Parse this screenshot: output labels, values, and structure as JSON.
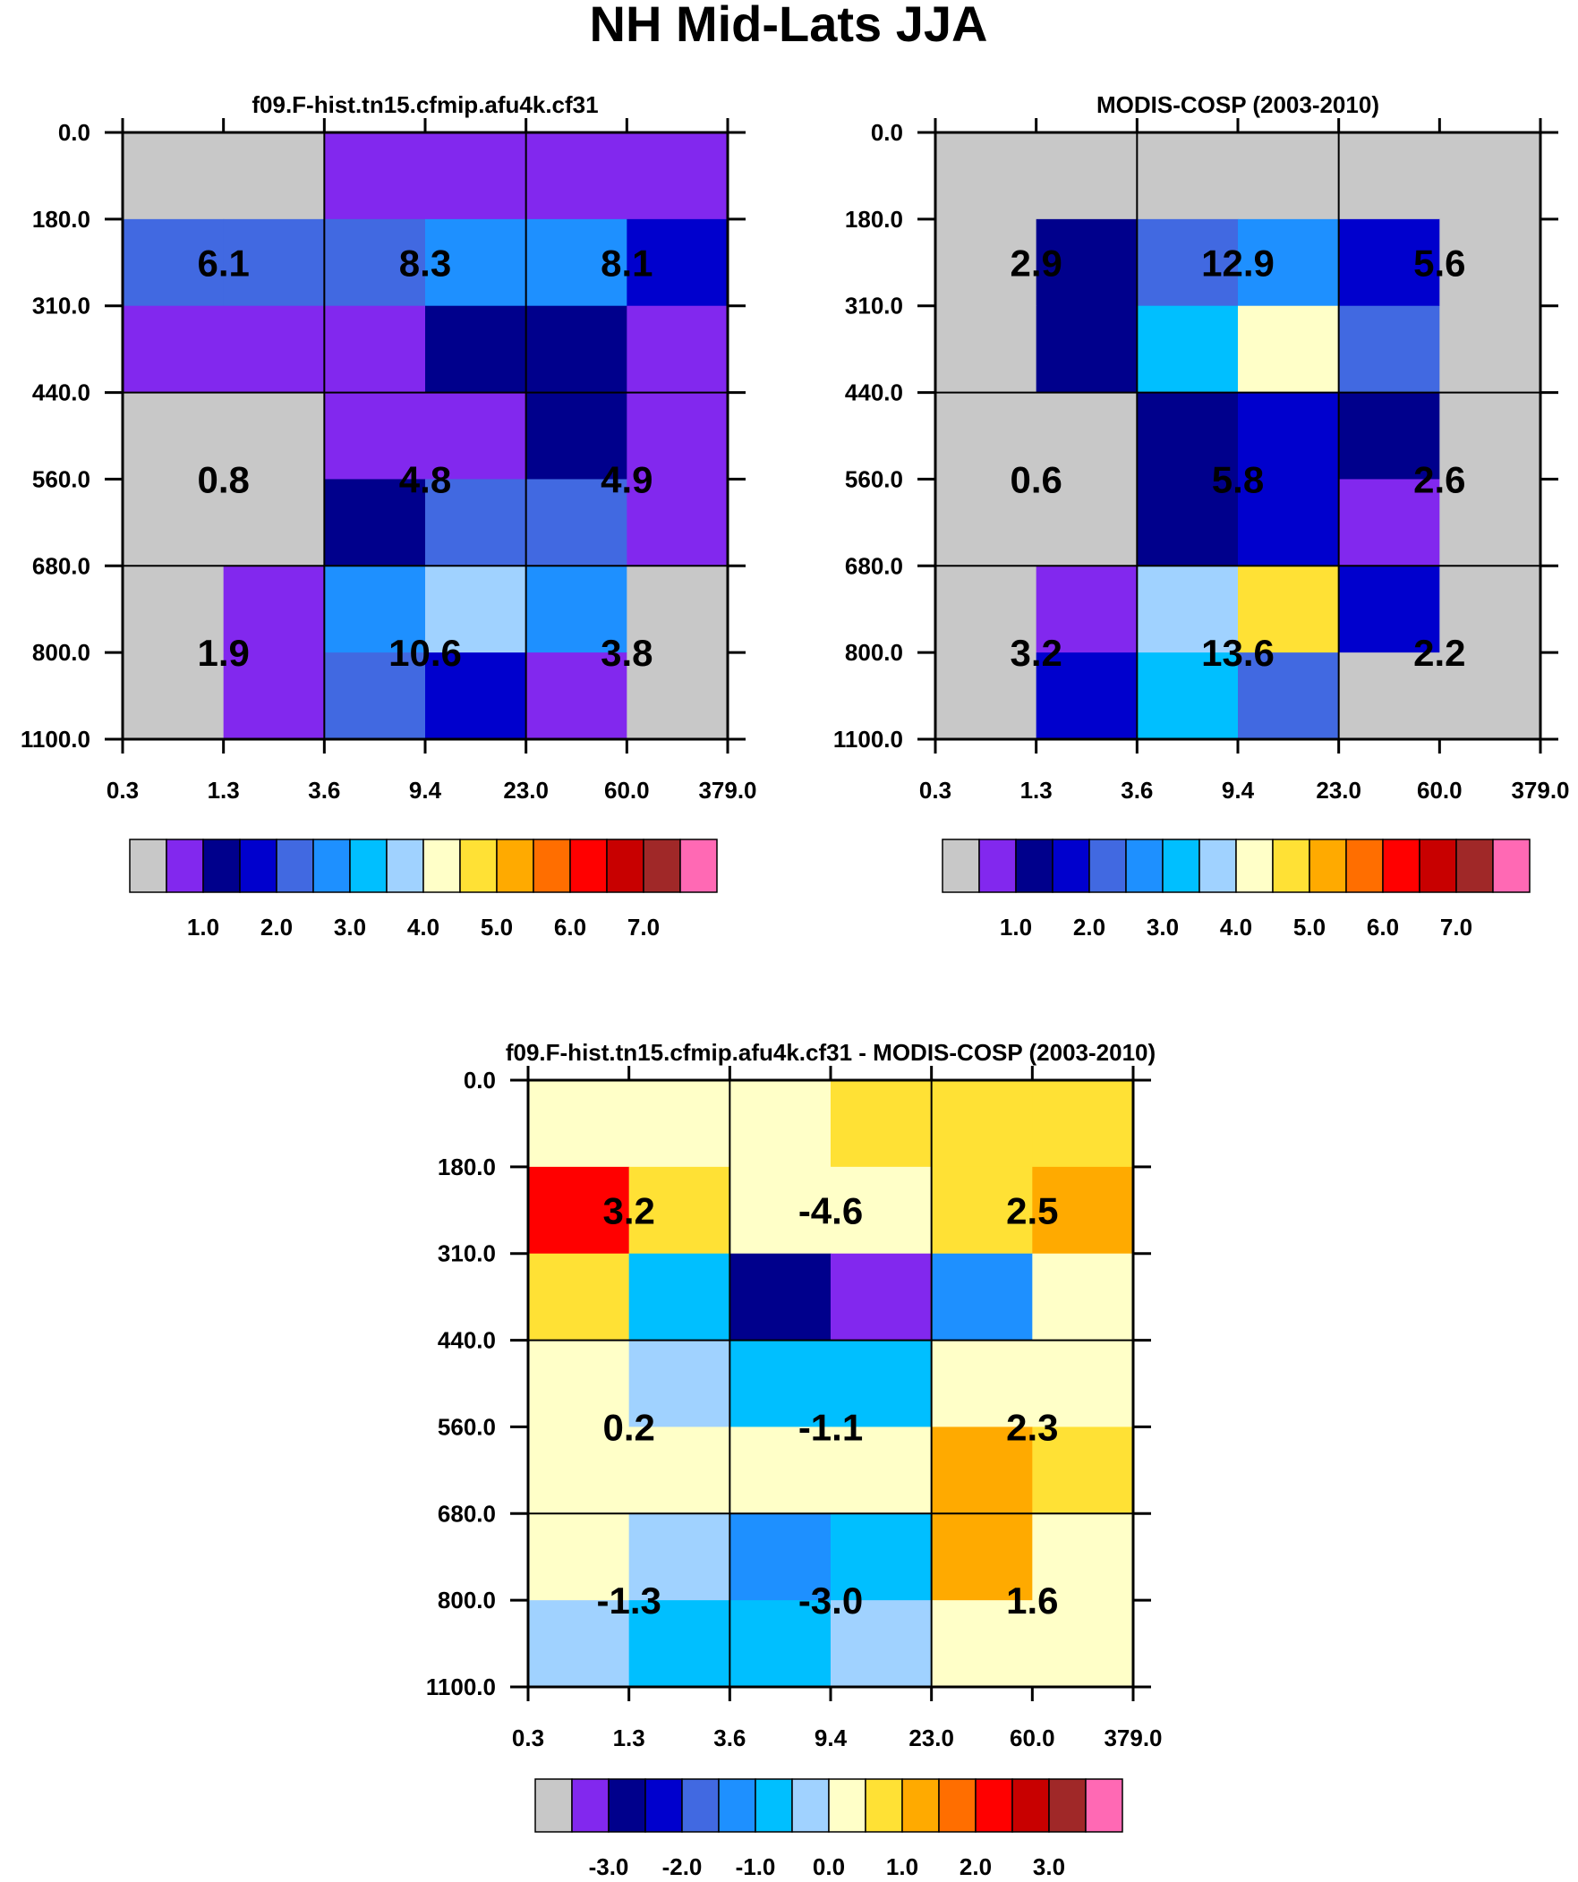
{
  "figure": {
    "title": "NH Mid-Lats JJA"
  },
  "chart_data": [
    {
      "type": "heatmap",
      "title": "f09.F-hist.tn15.cfmip.afu4k.cf31",
      "x_tick_labels": [
        "0.3",
        "1.3",
        "3.6",
        "9.4",
        "23.0",
        "60.0",
        "379.0"
      ],
      "y_tick_labels": [
        "0.0",
        "180.0",
        "310.0",
        "440.0",
        "560.0",
        "680.0",
        "800.0",
        "1100.0"
      ],
      "cell_color_index": [
        [
          0,
          0,
          1,
          1,
          1,
          1
        ],
        [
          4,
          4,
          4,
          5,
          5,
          3
        ],
        [
          1,
          1,
          1,
          2,
          2,
          1
        ],
        [
          0,
          0,
          1,
          1,
          2,
          1
        ],
        [
          0,
          0,
          2,
          4,
          4,
          1
        ],
        [
          0,
          1,
          5,
          7,
          5,
          0
        ],
        [
          0,
          1,
          4,
          3,
          1,
          0
        ]
      ],
      "block_labels": [
        [
          "6.1",
          "8.3",
          "8.1"
        ],
        [
          "0.8",
          "4.8",
          "4.9"
        ],
        [
          "1.9",
          "10.6",
          "3.8"
        ]
      ],
      "legend": {
        "colors": [
          "#C8C8C8",
          "#8228EE",
          "#00008C",
          "#0000CD",
          "#4169E1",
          "#1E90FF",
          "#00BFFF",
          "#A0D2FF",
          "#FFFFC8",
          "#FFE135",
          "#FFAA00",
          "#FF6E00",
          "#FF0000",
          "#C80000",
          "#A02828",
          "#FF69B4"
        ],
        "tick_labels": [
          "1.0",
          "2.0",
          "3.0",
          "4.0",
          "5.0",
          "6.0",
          "7.0"
        ]
      }
    },
    {
      "type": "heatmap",
      "title": "MODIS-COSP (2003-2010)",
      "x_tick_labels": [
        "0.3",
        "1.3",
        "3.6",
        "9.4",
        "23.0",
        "60.0",
        "379.0"
      ],
      "y_tick_labels": [
        "0.0",
        "180.0",
        "310.0",
        "440.0",
        "560.0",
        "680.0",
        "800.0",
        "1100.0"
      ],
      "cell_color_index": [
        [
          0,
          0,
          0,
          0,
          0,
          0
        ],
        [
          0,
          2,
          4,
          5,
          3,
          0
        ],
        [
          0,
          2,
          6,
          8,
          4,
          0
        ],
        [
          0,
          0,
          2,
          3,
          2,
          0
        ],
        [
          0,
          0,
          2,
          3,
          1,
          0
        ],
        [
          0,
          1,
          7,
          9,
          3,
          0
        ],
        [
          0,
          3,
          6,
          4,
          0,
          0
        ]
      ],
      "block_labels": [
        [
          "2.9",
          "12.9",
          "5.6"
        ],
        [
          "0.6",
          "5.8",
          "2.6"
        ],
        [
          "3.2",
          "13.6",
          "2.2"
        ]
      ],
      "legend": {
        "colors": [
          "#C8C8C8",
          "#8228EE",
          "#00008C",
          "#0000CD",
          "#4169E1",
          "#1E90FF",
          "#00BFFF",
          "#A0D2FF",
          "#FFFFC8",
          "#FFE135",
          "#FFAA00",
          "#FF6E00",
          "#FF0000",
          "#C80000",
          "#A02828",
          "#FF69B4"
        ],
        "tick_labels": [
          "1.0",
          "2.0",
          "3.0",
          "4.0",
          "5.0",
          "6.0",
          "7.0"
        ]
      }
    },
    {
      "type": "heatmap",
      "title": "f09.F-hist.tn15.cfmip.afu4k.cf31 - MODIS-COSP (2003-2010)",
      "x_tick_labels": [
        "0.3",
        "1.3",
        "3.6",
        "9.4",
        "23.0",
        "60.0",
        "379.0"
      ],
      "y_tick_labels": [
        "0.0",
        "180.0",
        "310.0",
        "440.0",
        "560.0",
        "680.0",
        "800.0",
        "1100.0"
      ],
      "cell_color_index": [
        [
          8,
          8,
          8,
          9,
          9,
          9
        ],
        [
          12,
          9,
          8,
          8,
          9,
          10
        ],
        [
          9,
          6,
          2,
          1,
          5,
          8
        ],
        [
          8,
          7,
          6,
          6,
          8,
          8
        ],
        [
          8,
          8,
          8,
          8,
          10,
          9
        ],
        [
          8,
          7,
          5,
          6,
          10,
          8
        ],
        [
          7,
          6,
          6,
          7,
          8,
          8
        ]
      ],
      "block_labels": [
        [
          "3.2",
          "-4.6",
          "2.5"
        ],
        [
          "0.2",
          "-1.1",
          "2.3"
        ],
        [
          "-1.3",
          "-3.0",
          "1.6"
        ]
      ],
      "legend": {
        "colors": [
          "#C8C8C8",
          "#8228EE",
          "#00008C",
          "#0000CD",
          "#4169E1",
          "#1E90FF",
          "#00BFFF",
          "#A0D2FF",
          "#FFFFC8",
          "#FFE135",
          "#FFAA00",
          "#FF6E00",
          "#FF0000",
          "#C80000",
          "#A02828",
          "#FF69B4"
        ],
        "tick_labels": [
          "-3.0",
          "-2.0",
          "-1.0",
          "0.0",
          "1.0",
          "2.0",
          "3.0"
        ]
      }
    }
  ]
}
